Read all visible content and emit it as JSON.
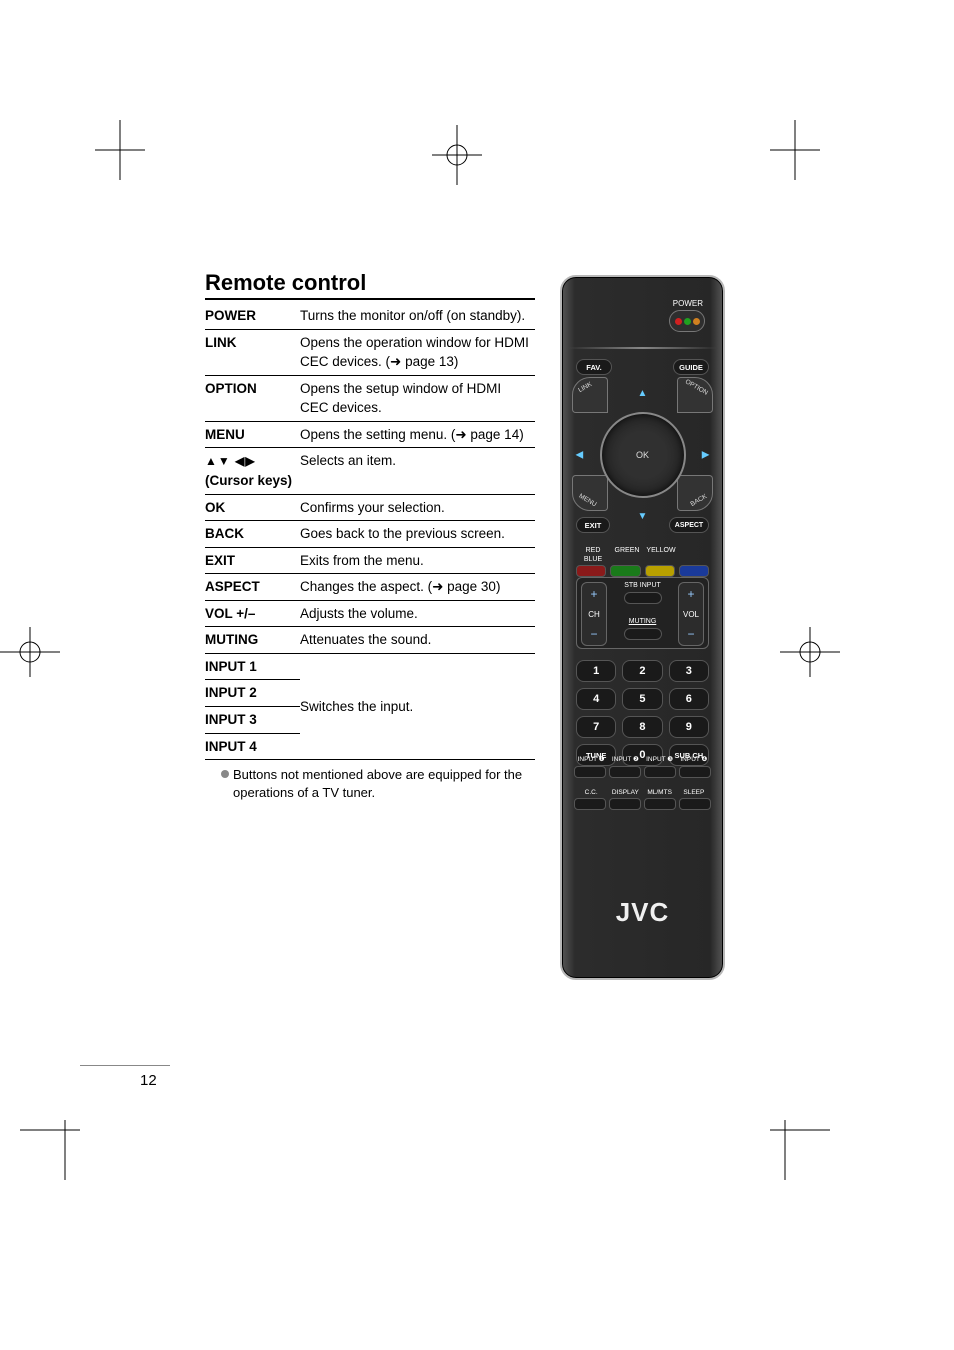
{
  "section_title": "Remote control",
  "page_number": "12",
  "footnote": "Buttons not mentioned above are equipped for the operations of a TV tuner.",
  "table": {
    "rows": [
      {
        "key": "POWER",
        "desc": "Turns the monitor on/off (on standby).",
        "sep": true
      },
      {
        "key": "LINK",
        "desc": "Opens the operation window for HDMI CEC devices. (➜ page 13)",
        "sep": true
      },
      {
        "key": "OPTION",
        "desc": "Opens the setup window of HDMI CEC devices.",
        "sep": true
      },
      {
        "key": "MENU",
        "desc": "Opens the setting menu. (➜ page 14)",
        "sep": true
      },
      {
        "key": "▲▼ ◀▶\n(Cursor keys)",
        "desc": "Selects an item.",
        "sep": true,
        "cursor": true
      },
      {
        "key": "OK",
        "desc": "Confirms your selection.",
        "sep": true
      },
      {
        "key": "BACK",
        "desc": "Goes back to the previous screen.",
        "sep": true
      },
      {
        "key": "EXIT",
        "desc": "Exits from the menu.",
        "sep": true
      },
      {
        "key": "ASPECT",
        "desc": "Changes the aspect. (➜ page 30)",
        "sep": true
      },
      {
        "key": "VOL +/–",
        "desc": "Adjusts the volume.",
        "sep": true
      },
      {
        "key": "MUTING",
        "desc": "Attenuates the sound.",
        "sep": true
      },
      {
        "key": "INPUT 1",
        "desc": "",
        "sep": true,
        "group_start": true
      },
      {
        "key": "INPUT 2",
        "desc": "Switches the input.",
        "sep": true,
        "group_mid": true
      },
      {
        "key": "INPUT 3",
        "desc": "",
        "sep": true,
        "group_mid": true
      },
      {
        "key": "INPUT 4",
        "desc": "",
        "sep": true,
        "group_end": true
      }
    ]
  },
  "remote": {
    "brand": "JVC",
    "labels": {
      "power": "POWER",
      "fav": "FAV.",
      "guide": "GUIDE",
      "link": "LINK",
      "option": "OPTION",
      "menu": "MENU",
      "back": "BACK",
      "exit": "EXIT",
      "aspect": "ASPECT",
      "ok": "OK",
      "red": "RED",
      "green": "GREEN",
      "yellow": "YELLOW",
      "blue": "BLUE",
      "stb_input": "STB INPUT",
      "muting": "MUTING",
      "ch": "CH",
      "vol": "VOL",
      "tune": "TUNE",
      "subch": "SUB CH",
      "input1": "INPUT ❶",
      "input2": "INPUT ❷",
      "input3": "INPUT ❸",
      "input4": "INPUT ❹",
      "cc": "C.C.",
      "display": "DISPLAY",
      "mlmts": "ML/MTS",
      "sleep": "SLEEP"
    },
    "colors": {
      "body_border": "#b8b8b8",
      "body_bg_dark": "#272727",
      "accent_blue": "#6cc9ff",
      "red": "#8a1a1a",
      "green": "#1a7a1a",
      "yellow": "#b8a000",
      "blue": "#1a3a9a",
      "power_red": "#d02020",
      "power_green": "#20a020",
      "power_orange": "#d08020"
    },
    "numbers": [
      "1",
      "2",
      "3",
      "4",
      "5",
      "6",
      "7",
      "8",
      "9"
    ]
  }
}
